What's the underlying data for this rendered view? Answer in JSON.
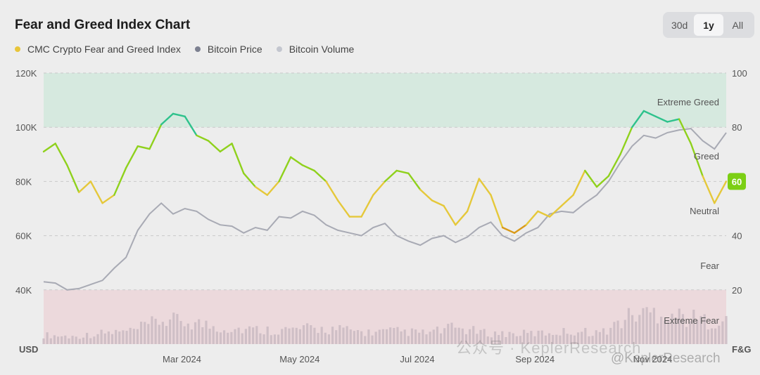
{
  "header": {
    "title": "Fear and Greed Index Chart",
    "ranges": [
      "30d",
      "1y",
      "All"
    ],
    "active_range": "1y"
  },
  "legend": [
    {
      "label": "CMC Crypto Fear and Greed Index",
      "color": "#e8c53a"
    },
    {
      "label": "Bitcoin Price",
      "color": "#7c8090"
    },
    {
      "label": "Bitcoin Volume",
      "color": "#c3c6cf"
    }
  ],
  "colors": {
    "extreme_greed_band": "#d6e9df",
    "extreme_fear_band": "#ecd9dc",
    "price_line": "#a8aab4",
    "volume_bars": "#c8b8c0",
    "greed_green": "#8fd11c",
    "extreme_greed_teal": "#2ec28c",
    "neutral_yellow": "#e5c83a",
    "fear_orange": "#d99a1a",
    "current_badge": "#7ccf14"
  },
  "watermark": {
    "text": "公众号 · KeplerResearch",
    "handle": "@KeplerResearch"
  },
  "chart_data": {
    "type": "line",
    "left_axis": {
      "unit": "USD",
      "ticks": [
        "40K",
        "60K",
        "80K",
        "100K",
        "120K"
      ],
      "values": [
        40000,
        60000,
        80000,
        100000,
        120000
      ],
      "range": [
        40000,
        120000
      ]
    },
    "right_axis": {
      "label": "F&G",
      "ticks": [
        "20",
        "40",
        "60",
        "80",
        "100"
      ],
      "values": [
        20,
        40,
        60,
        80,
        100
      ],
      "range": [
        0,
        100
      ]
    },
    "x_ticks": [
      "Mar 2024",
      "May 2024",
      "Jul 2024",
      "Sep 2024",
      "Nov 2024"
    ],
    "x_ticks_month": [
      2,
      4,
      6,
      8,
      10
    ],
    "zones": [
      "Extreme Greed",
      "Greed",
      "Neutral",
      "Fear",
      "Extreme Fear"
    ],
    "current_value": "60",
    "series": [
      {
        "name": "CMC Crypto Fear and Greed Index",
        "x": [
          0,
          0.2,
          0.4,
          0.6,
          0.8,
          1.0,
          1.2,
          1.4,
          1.6,
          1.8,
          2.0,
          2.2,
          2.4,
          2.6,
          2.8,
          3.0,
          3.2,
          3.4,
          3.6,
          3.8,
          4.0,
          4.2,
          4.4,
          4.6,
          4.8,
          5.0,
          5.2,
          5.4,
          5.6,
          5.8,
          6.0,
          6.2,
          6.4,
          6.6,
          6.8,
          7.0,
          7.2,
          7.4,
          7.6,
          7.8,
          8.0,
          8.2,
          8.4,
          8.6,
          8.8,
          9.0,
          9.2,
          9.4,
          9.6,
          9.8,
          10.0,
          10.2,
          10.4,
          10.6,
          10.8,
          11.0,
          11.2,
          11.4,
          11.6
        ],
        "values": [
          71,
          74,
          66,
          56,
          60,
          52,
          55,
          65,
          73,
          72,
          81,
          85,
          84,
          77,
          75,
          71,
          74,
          63,
          58,
          55,
          60,
          69,
          66,
          64,
          60,
          53,
          47,
          47,
          55,
          60,
          64,
          63,
          57,
          53,
          51,
          44,
          49,
          61,
          55,
          43,
          41,
          44,
          49,
          47,
          51,
          55,
          64,
          58,
          62,
          70,
          80,
          86,
          84,
          82,
          83,
          74,
          62,
          52,
          60
        ],
        "color_by_zone": true
      },
      {
        "name": "Bitcoin Price",
        "x": [
          0,
          0.2,
          0.4,
          0.6,
          0.8,
          1.0,
          1.2,
          1.4,
          1.6,
          1.8,
          2.0,
          2.2,
          2.4,
          2.6,
          2.8,
          3.0,
          3.2,
          3.4,
          3.6,
          3.8,
          4.0,
          4.2,
          4.4,
          4.6,
          4.8,
          5.0,
          5.2,
          5.4,
          5.6,
          5.8,
          6.0,
          6.2,
          6.4,
          6.6,
          6.8,
          7.0,
          7.2,
          7.4,
          7.6,
          7.8,
          8.0,
          8.2,
          8.4,
          8.6,
          8.8,
          9.0,
          9.2,
          9.4,
          9.6,
          9.8,
          10.0,
          10.2,
          10.4,
          10.6,
          10.8,
          11.0,
          11.2,
          11.4,
          11.6
        ],
        "values": [
          43000,
          42500,
          40000,
          40500,
          42000,
          43500,
          48000,
          52000,
          62000,
          68000,
          72000,
          68000,
          70000,
          69000,
          66000,
          64000,
          63500,
          61000,
          63000,
          62000,
          67000,
          66500,
          69000,
          67500,
          64000,
          62000,
          61000,
          60000,
          63000,
          64500,
          60000,
          58000,
          56500,
          59000,
          60000,
          57500,
          59500,
          63000,
          65000,
          60000,
          58000,
          61000,
          63000,
          68000,
          69000,
          68500,
          72000,
          75000,
          80000,
          87000,
          93000,
          97000,
          96000,
          98000,
          99000,
          99500,
          95000,
          92000,
          98000
        ]
      },
      {
        "name": "Bitcoin Volume",
        "x": [
          0,
          0.5,
          1.0,
          1.5,
          2.0,
          2.5,
          3.0,
          3.5,
          4.0,
          4.5,
          5.0,
          5.5,
          6.0,
          6.5,
          7.0,
          7.5,
          8.0,
          8.5,
          9.0,
          9.5,
          10.0,
          10.5,
          11.0,
          11.5
        ],
        "values": [
          0.25,
          0.2,
          0.3,
          0.35,
          0.65,
          0.6,
          0.45,
          0.4,
          0.38,
          0.42,
          0.4,
          0.32,
          0.35,
          0.3,
          0.45,
          0.3,
          0.28,
          0.3,
          0.35,
          0.32,
          0.8,
          0.9,
          0.7,
          0.6
        ]
      }
    ]
  }
}
